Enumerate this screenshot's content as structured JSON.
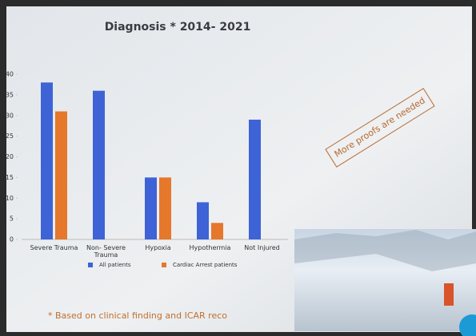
{
  "chart_data": {
    "type": "bar",
    "title": "Diagnosis * 2014- 2021",
    "categories": [
      "Severe Trauma",
      "Non- Severe Trauma",
      "Hypoxia",
      "Hypothermia",
      "Not Injured"
    ],
    "series": [
      {
        "name": "All patients",
        "color": "#3d63d6",
        "values": [
          38,
          36,
          15,
          9,
          29
        ]
      },
      {
        "name": "Cardiac Arrest patients",
        "color": "#e5782a",
        "values": [
          31,
          0,
          15,
          4,
          0
        ]
      }
    ],
    "ylim": [
      0,
      40
    ],
    "yticks": [
      0,
      5,
      10,
      15,
      20,
      25,
      30,
      35,
      40
    ],
    "grid": false,
    "annotations": [
      "More proofs are needed",
      "* Based on clinical finding and ICAR reco"
    ]
  }
}
